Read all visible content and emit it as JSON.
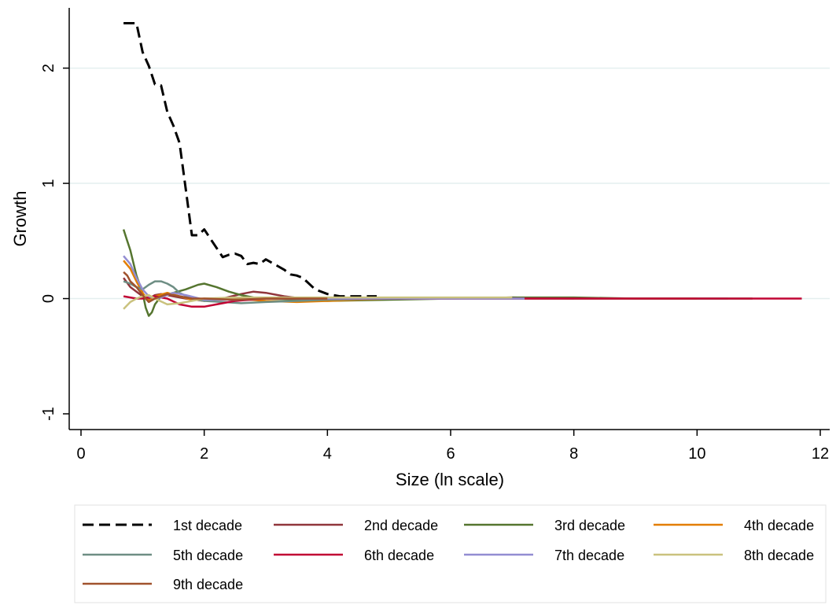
{
  "chart_data": {
    "type": "line",
    "title": "",
    "xlabel": "Size (ln scale)",
    "ylabel": "Growth",
    "xlim": [
      0,
      12
    ],
    "ylim": [
      -1,
      2.4
    ],
    "xticks": [
      0,
      2,
      4,
      6,
      8,
      10,
      12
    ],
    "yticks": [
      -1,
      0,
      1,
      2
    ],
    "grid": "horizontal",
    "legend_position": "bottom",
    "series": [
      {
        "name": "1st decade",
        "color": "#000000",
        "dash": "dashed",
        "x": [
          0.69,
          0.9,
          1.0,
          1.1,
          1.2,
          1.3,
          1.4,
          1.5,
          1.6,
          1.7,
          1.8,
          1.9,
          2.0,
          2.1,
          2.2,
          2.3,
          2.4,
          2.5,
          2.6,
          2.7,
          2.8,
          2.9,
          3.0,
          3.1,
          3.2,
          3.3,
          3.4,
          3.5,
          3.6,
          3.8,
          4.0,
          4.2,
          4.5,
          4.8
        ],
        "y": [
          2.39,
          2.39,
          2.14,
          2.02,
          1.86,
          1.85,
          1.62,
          1.5,
          1.35,
          0.95,
          0.55,
          0.55,
          0.6,
          0.52,
          0.44,
          0.36,
          0.38,
          0.39,
          0.37,
          0.3,
          0.31,
          0.3,
          0.34,
          0.31,
          0.28,
          0.25,
          0.21,
          0.2,
          0.18,
          0.08,
          0.04,
          0.02,
          0.02,
          0.02
        ]
      },
      {
        "name": "2nd decade",
        "color": "#90353B",
        "x": [
          0.69,
          0.8,
          0.9,
          1.0,
          1.1,
          1.2,
          1.3,
          1.5,
          1.7,
          2.0,
          2.3,
          2.6,
          2.8,
          3.0,
          3.3,
          3.6,
          4.0,
          5.0,
          6.0,
          7.0,
          8.0
        ],
        "y": [
          0.18,
          0.1,
          0.06,
          0.02,
          0.0,
          0.03,
          0.04,
          0.02,
          0.0,
          -0.02,
          0.0,
          0.04,
          0.06,
          0.05,
          0.02,
          0.0,
          -0.01,
          0.0,
          0.0,
          0.01,
          0.0
        ]
      },
      {
        "name": "3rd decade",
        "color": "#55752F",
        "x": [
          0.69,
          0.75,
          0.8,
          0.9,
          1.0,
          1.05,
          1.1,
          1.15,
          1.2,
          1.3,
          1.5,
          1.7,
          1.9,
          2.0,
          2.2,
          2.4,
          2.6,
          2.8,
          3.0,
          3.5,
          4.0,
          5.0,
          6.0,
          7.0,
          8.0,
          9.0,
          10.0,
          10.9
        ],
        "y": [
          0.6,
          0.5,
          0.42,
          0.2,
          0.05,
          -0.08,
          -0.15,
          -0.12,
          -0.05,
          0.02,
          0.05,
          0.08,
          0.12,
          0.13,
          0.1,
          0.06,
          0.03,
          0.01,
          0.0,
          -0.01,
          -0.02,
          -0.01,
          0.0,
          0.01,
          0.01,
          0.0,
          0.0,
          0.0
        ]
      },
      {
        "name": "4th decade",
        "color": "#E37E00",
        "x": [
          0.69,
          0.8,
          0.9,
          1.0,
          1.1,
          1.2,
          1.4,
          1.6,
          1.8,
          2.0,
          2.5,
          3.0,
          3.5,
          4.0,
          5.0,
          6.0,
          7.0,
          8.0,
          9.0,
          10.0
        ],
        "y": [
          0.33,
          0.26,
          0.15,
          0.05,
          -0.02,
          0.02,
          0.05,
          0.02,
          -0.01,
          0.0,
          0.0,
          -0.02,
          -0.03,
          -0.02,
          0.0,
          0.0,
          0.0,
          0.0,
          0.0,
          0.0
        ]
      },
      {
        "name": "5th decade",
        "color": "#6E8E84",
        "x": [
          0.69,
          0.8,
          0.9,
          1.0,
          1.1,
          1.2,
          1.3,
          1.4,
          1.5,
          1.6,
          1.8,
          2.0,
          2.3,
          2.6,
          3.0,
          3.5,
          4.0,
          5.0,
          6.0,
          7.0,
          8.0,
          8.6,
          9.5,
          10.5
        ],
        "y": [
          0.15,
          0.13,
          0.1,
          0.08,
          0.12,
          0.15,
          0.15,
          0.13,
          0.1,
          0.05,
          0.0,
          -0.02,
          -0.03,
          -0.04,
          -0.03,
          -0.02,
          -0.01,
          0.0,
          0.0,
          0.0,
          0.0,
          0.0,
          0.0,
          0.0
        ]
      },
      {
        "name": "6th decade",
        "color": "#C10534",
        "x": [
          0.69,
          0.9,
          1.0,
          1.2,
          1.4,
          1.6,
          1.8,
          2.0,
          2.2,
          2.5,
          3.0,
          3.5,
          4.0,
          5.0,
          6.0,
          7.0,
          8.0,
          9.0,
          10.0,
          11.0,
          11.7
        ],
        "y": [
          0.02,
          0.0,
          0.0,
          0.02,
          0.0,
          -0.05,
          -0.07,
          -0.07,
          -0.05,
          -0.02,
          0.0,
          0.0,
          0.0,
          0.0,
          0.0,
          0.0,
          0.0,
          0.0,
          0.0,
          0.0,
          0.0
        ]
      },
      {
        "name": "7th decade",
        "color": "#938DD2",
        "x": [
          0.69,
          0.8,
          0.9,
          1.0,
          1.1,
          1.2,
          1.3,
          1.5,
          1.7,
          2.0,
          2.5,
          3.0,
          4.0,
          5.0,
          6.0,
          7.2
        ],
        "y": [
          0.37,
          0.3,
          0.18,
          0.08,
          0.02,
          0.0,
          0.01,
          0.05,
          0.03,
          -0.01,
          -0.01,
          0.0,
          0.0,
          0.0,
          0.0,
          0.0
        ]
      },
      {
        "name": "8th decade",
        "color": "#CAC27E",
        "x": [
          0.69,
          0.8,
          0.9,
          1.0,
          1.1,
          1.2,
          1.4,
          1.6,
          1.8,
          2.0,
          2.5,
          3.0,
          4.0,
          5.0,
          6.0,
          7.0
        ],
        "y": [
          -0.09,
          -0.03,
          0.0,
          0.02,
          0.03,
          0.0,
          -0.05,
          -0.04,
          -0.02,
          0.0,
          0.01,
          0.01,
          0.01,
          0.01,
          0.01,
          0.01
        ]
      },
      {
        "name": "9th decade",
        "color": "#A0522D",
        "x": [
          0.69,
          0.75,
          0.8,
          0.9,
          1.0,
          1.1,
          1.2,
          1.4,
          1.6,
          1.8,
          2.0,
          2.5,
          3.0,
          4.0
        ],
        "y": [
          0.23,
          0.2,
          0.15,
          0.1,
          0.03,
          -0.03,
          0.0,
          0.04,
          0.02,
          0.0,
          0.0,
          -0.01,
          0.0,
          0.0
        ]
      }
    ]
  }
}
